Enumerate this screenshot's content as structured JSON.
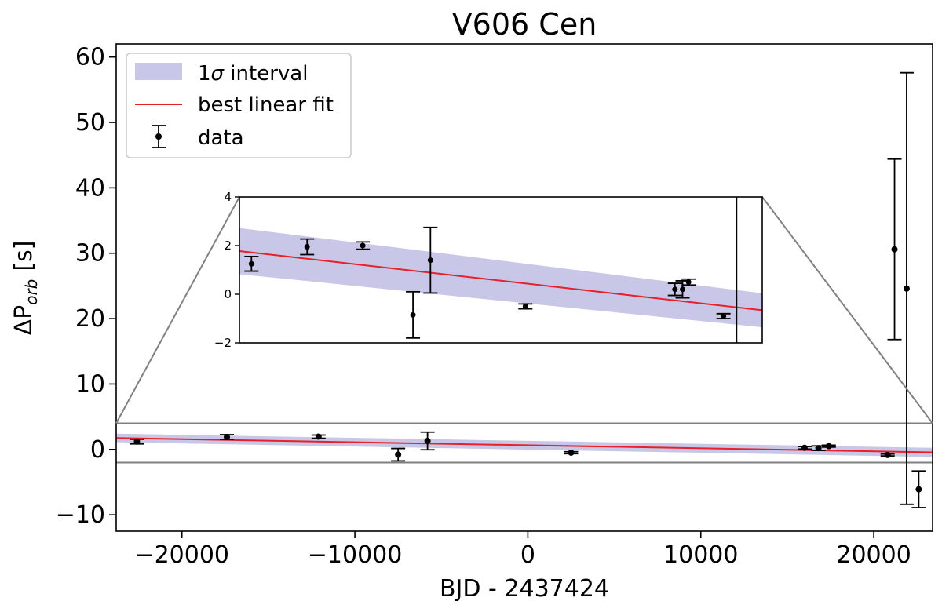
{
  "chart_data": {
    "type": "scatter",
    "title": "V606 Cen",
    "xlabel": "BJD - 2437424",
    "ylabel_main": "ΔP",
    "ylabel_sub": "orb",
    "ylabel_unit": "[s]",
    "xlim": [
      -23800,
      23400
    ],
    "ylim": [
      -12.5,
      62
    ],
    "xticks": [
      -20000,
      -10000,
      0,
      10000,
      20000
    ],
    "xtick_labels": [
      "−20000",
      "−10000",
      "0",
      "10000",
      "20000"
    ],
    "yticks": [
      -10,
      0,
      10,
      20,
      30,
      40,
      50,
      60
    ],
    "ytick_labels": [
      "−10",
      "0",
      "10",
      "20",
      "30",
      "40",
      "50",
      "60"
    ],
    "legend": {
      "position": "top-left",
      "entries": [
        {
          "prefix": "1",
          "symbol": "σ",
          "suffix": " interval",
          "kind": "band"
        },
        {
          "label": "best linear fit",
          "kind": "line"
        },
        {
          "label": "data",
          "kind": "errorbar"
        }
      ]
    },
    "fit": {
      "x": [
        -23800,
        23400
      ],
      "y": [
        1.75,
        -0.45
      ]
    },
    "band": {
      "x": [
        -23800,
        23400
      ],
      "upper": [
        2.4,
        0.25
      ],
      "lower": [
        1.1,
        -1.15
      ]
    },
    "zoom_region": {
      "xlim": [
        -23800,
        23400
      ],
      "ylim": [
        -2,
        4
      ]
    },
    "series": [
      {
        "name": "data",
        "points": [
          {
            "x": -22600,
            "y": 1.2,
            "err": 0.35
          },
          {
            "x": -17400,
            "y": 1.9,
            "err": 0.35
          },
          {
            "x": -12100,
            "y": 1.95,
            "err": 0.25
          },
          {
            "x": -7500,
            "y": -0.8,
            "err": 0.95
          },
          {
            "x": -5800,
            "y": 1.3,
            "err": 1.35
          },
          {
            "x": 2500,
            "y": -0.5,
            "err": 0.15
          },
          {
            "x": 16000,
            "y": 0.25,
            "err": 0.2
          },
          {
            "x": 16800,
            "y": 0.2,
            "err": 0.35
          },
          {
            "x": 17400,
            "y": 0.5,
            "err": 0.15
          },
          {
            "x": 20800,
            "y": -0.85,
            "err": 0.15
          },
          {
            "x": 21200,
            "y": 30.6,
            "err": 13.8
          },
          {
            "x": 21900,
            "y": 24.6,
            "err": 33.0
          },
          {
            "x": 22600,
            "y": -6.1,
            "err": 2.8
          }
        ]
      }
    ],
    "inset": {
      "yticks": [
        -2,
        0,
        2,
        4
      ],
      "ytick_labels": [
        "−2",
        "0",
        "2",
        "4"
      ],
      "xlim": [
        -24300,
        23600
      ],
      "ylim": [
        -2,
        4
      ],
      "points": [
        {
          "x": -23200,
          "y": 1.25,
          "err": 0.3
        },
        {
          "x": -18100,
          "y": 1.95,
          "err": 0.32
        },
        {
          "x": -13000,
          "y": 2.0,
          "err": 0.15
        },
        {
          "x": -8400,
          "y": -0.85,
          "err": 0.95
        },
        {
          "x": -6800,
          "y": 1.4,
          "err": 1.35
        },
        {
          "x": 1900,
          "y": -0.5,
          "err": 0.1
        },
        {
          "x": 15600,
          "y": 0.2,
          "err": 0.25
        },
        {
          "x": 16300,
          "y": 0.2,
          "err": 0.35
        },
        {
          "x": 16850,
          "y": 0.5,
          "err": 0.12
        },
        {
          "x": 20050,
          "y": -0.9,
          "err": 0.1
        }
      ],
      "vline": {
        "x": 21250
      }
    }
  }
}
